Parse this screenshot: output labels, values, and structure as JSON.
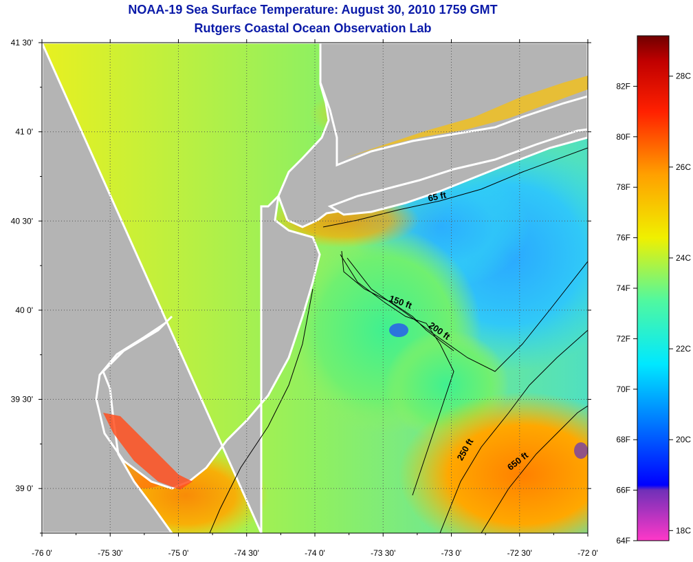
{
  "title": {
    "line1": "NOAA-19 Sea Surface Temperature:  August 30, 2010 1759 GMT",
    "line2": "Rutgers Coastal Ocean Observation Lab"
  },
  "map": {
    "lon_range": [
      -76.0,
      -72.0
    ],
    "lat_range": [
      38.75,
      41.5
    ],
    "x_ticks": [
      {
        "value": -76.0,
        "label": "-76 0'"
      },
      {
        "value": -75.5,
        "label": "-75 30'"
      },
      {
        "value": -75.0,
        "label": "-75 0'"
      },
      {
        "value": -74.5,
        "label": "-74 30'"
      },
      {
        "value": -74.0,
        "label": "-74 0'"
      },
      {
        "value": -73.5,
        "label": "-73 30'"
      },
      {
        "value": -73.0,
        "label": "-73 0'"
      },
      {
        "value": -72.5,
        "label": "-72 30'"
      },
      {
        "value": -72.0,
        "label": "-72 0'"
      }
    ],
    "y_ticks": [
      {
        "value": 41.5,
        "label": "41 30'"
      },
      {
        "value": 41.0,
        "label": "41 0'"
      },
      {
        "value": 40.5,
        "label": "40 30'"
      },
      {
        "value": 40.0,
        "label": "40 0'"
      },
      {
        "value": 39.5,
        "label": "39 30'"
      },
      {
        "value": 39.0,
        "label": "39 0'"
      }
    ],
    "contours": [
      {
        "label": "65 ft",
        "lon": -73.1,
        "lat": 40.62
      },
      {
        "label": "150 ft",
        "lon": -73.38,
        "lat": 40.03
      },
      {
        "label": "200 ft",
        "lon": -73.1,
        "lat": 39.87
      },
      {
        "label": "250 ft",
        "lon": -72.88,
        "lat": 39.21
      },
      {
        "label": "650 ft",
        "lon": -72.5,
        "lat": 39.14
      }
    ],
    "colors": {
      "land": "#b4b4b4",
      "shore": "#ffffff",
      "contour_line": "#000000",
      "grid": "#555555"
    }
  },
  "colorbar": {
    "f_labels": [
      {
        "value": 82,
        "label": "82F"
      },
      {
        "value": 80,
        "label": "80F"
      },
      {
        "value": 78,
        "label": "78F"
      },
      {
        "value": 76,
        "label": "76F"
      },
      {
        "value": 74,
        "label": "74F"
      },
      {
        "value": 72,
        "label": "72F"
      },
      {
        "value": 70,
        "label": "70F"
      },
      {
        "value": 68,
        "label": "68F"
      },
      {
        "value": 66,
        "label": "66F"
      },
      {
        "value": 64,
        "label": "64F"
      }
    ],
    "c_labels": [
      {
        "value": 28,
        "label": "28C"
      },
      {
        "value": 26,
        "label": "26C"
      },
      {
        "value": 24,
        "label": "24C"
      },
      {
        "value": 22,
        "label": "22C"
      },
      {
        "value": 20,
        "label": "20C"
      },
      {
        "value": 18,
        "label": "18C"
      }
    ],
    "stops": [
      {
        "f": 64,
        "color": "#ff38c8"
      },
      {
        "f": 66,
        "color": "#7030b8"
      },
      {
        "f": 66.2,
        "color": "#0000ff"
      },
      {
        "f": 68.5,
        "color": "#0070ff"
      },
      {
        "f": 71,
        "color": "#00e8ff"
      },
      {
        "f": 73.5,
        "color": "#50f8a0"
      },
      {
        "f": 76,
        "color": "#f0f000"
      },
      {
        "f": 78.5,
        "color": "#ffa000"
      },
      {
        "f": 81,
        "color": "#ff2000"
      },
      {
        "f": 83,
        "color": "#c00000"
      },
      {
        "f": 84,
        "color": "#700000"
      }
    ]
  }
}
